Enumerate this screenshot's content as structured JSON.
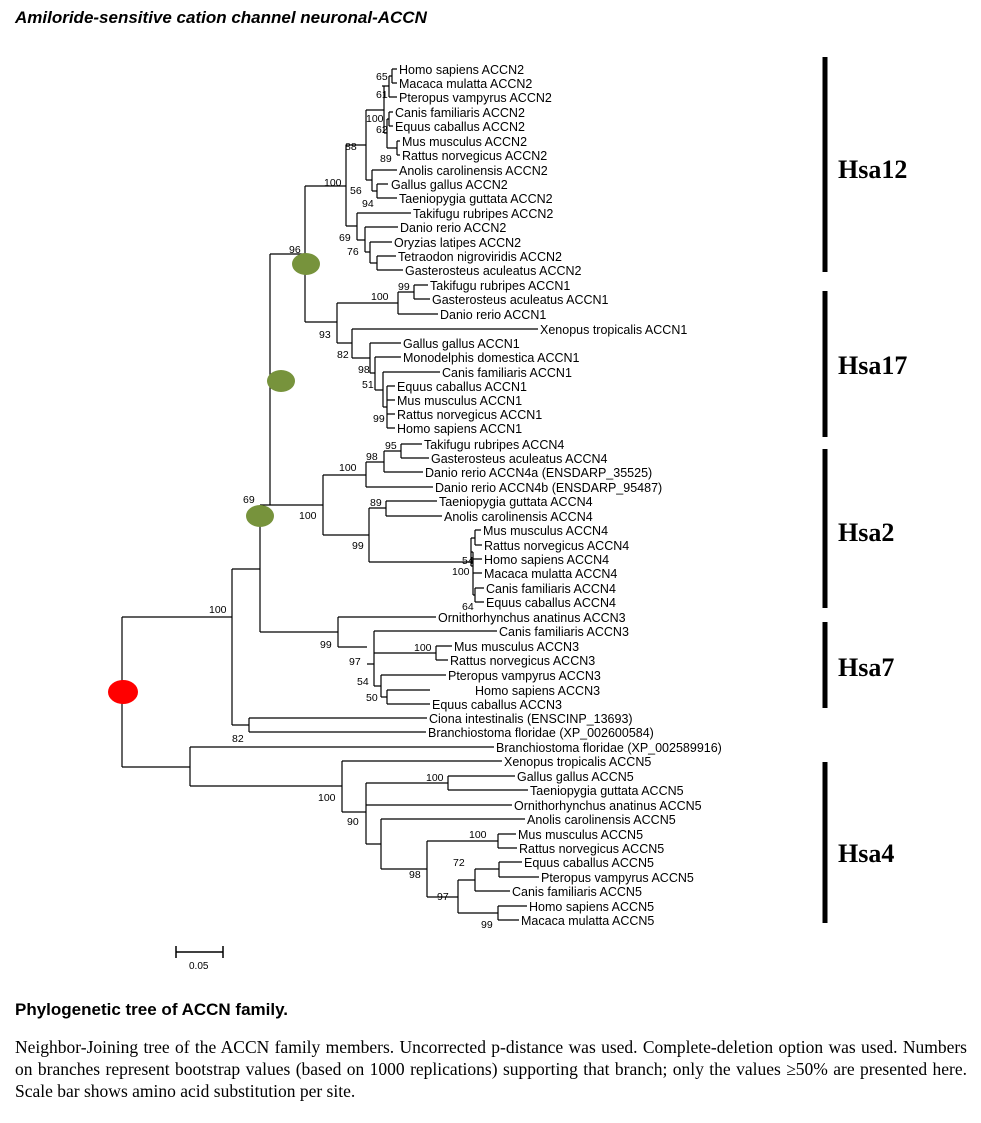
{
  "title": "Amiloride-sensitive cation channel  neuronal-ACCN",
  "leaves": [
    "Homo sapiens ACCN2",
    "Macaca mulatta ACCN2",
    "Pteropus vampyrus ACCN2",
    "Canis familiaris ACCN2",
    "Equus caballus ACCN2",
    "Mus musculus ACCN2",
    "Rattus norvegicus ACCN2",
    "Anolis carolinensis ACCN2",
    "Gallus gallus ACCN2",
    "Taeniopygia guttata ACCN2",
    "Takifugu rubripes ACCN2",
    "Danio rerio ACCN2",
    "Oryzias latipes ACCN2",
    "Tetraodon nigroviridis ACCN2",
    "Gasterosteus aculeatus ACCN2",
    "Takifugu rubripes ACCN1",
    "Gasterosteus aculeatus ACCN1",
    "Danio rerio ACCN1",
    "Xenopus tropicalis ACCN1",
    "Gallus gallus ACCN1",
    "Monodelphis domestica ACCN1",
    "Canis familiaris ACCN1",
    "Equus caballus ACCN1",
    "Mus musculus ACCN1",
    "Rattus norvegicus ACCN1",
    "Homo sapiens ACCN1",
    "Takifugu rubripes ACCN4",
    "Gasterosteus aculeatus ACCN4",
    "Danio rerio ACCN4a (ENSDARP_35525)",
    "Danio rerio ACCN4b (ENSDARP_95487)",
    "Taeniopygia guttata ACCN4",
    "Anolis carolinensis ACCN4",
    "Mus musculus ACCN4",
    "Rattus norvegicus ACCN4",
    "Homo sapiens ACCN4",
    "Macaca mulatta ACCN4",
    "Canis familiaris ACCN4",
    "Equus caballus ACCN4",
    "Ornithorhynchus anatinus ACCN3",
    "Canis familiaris ACCN3",
    "Mus musculus ACCN3",
    "Rattus norvegicus ACCN3",
    "Pteropus vampyrus ACCN3",
    "Homo sapiens ACCN3",
    "Equus caballus ACCN3",
    "Ciona intestinalis (ENSCINP_13693)",
    "Branchiostoma floridae (XP_002600584)",
    "Branchiostoma floridae (XP_002589916)",
    "Xenopus tropicalis ACCN5",
    "Gallus gallus ACCN5",
    "Taeniopygia guttata ACCN5",
    "Ornithorhynchus anatinus ACCN5",
    "Anolis carolinensis ACCN5",
    "Mus musculus ACCN5",
    "Rattus norvegicus ACCN5",
    "Equus caballus ACCN5",
    "Pteropus vampyrus ACCN5",
    "Canis familiaris ACCN5",
    "Homo sapiens ACCN5",
    "Macaca mulatta ACCN5"
  ],
  "bootstrap_values": [
    "65",
    "61",
    "100",
    "62",
    "89",
    "88",
    "100",
    "56",
    "94",
    "69",
    "76",
    "96",
    "99",
    "100",
    "93",
    "82",
    "98",
    "51",
    "99",
    "95",
    "98",
    "100",
    "89",
    "100",
    "99",
    "54",
    "100",
    "64",
    "69",
    "99",
    "100",
    "97",
    "54",
    "50",
    "100",
    "82",
    "100",
    "100",
    "90",
    "100",
    "72",
    "98",
    "97",
    "99"
  ],
  "groups": [
    "Hsa12",
    "Hsa17",
    "Hsa2",
    "Hsa7",
    "Hsa4"
  ],
  "scale_label": "0.05",
  "caption_title": "Phylogenetic tree of ACCN family.",
  "caption_body": "Neighbor-Joining tree of the ACCN family members. Uncorrected p-distance was used. Complete-deletion option was used. Numbers on branches represent bootstrap values (based on 1000 replications) supporting that branch; only the values ≥50% are presented here. Scale bar shows amino acid substitution per site.",
  "colors": {
    "duplication_node": "#77933c",
    "root_node": "#ff0000",
    "line": "#000000"
  }
}
